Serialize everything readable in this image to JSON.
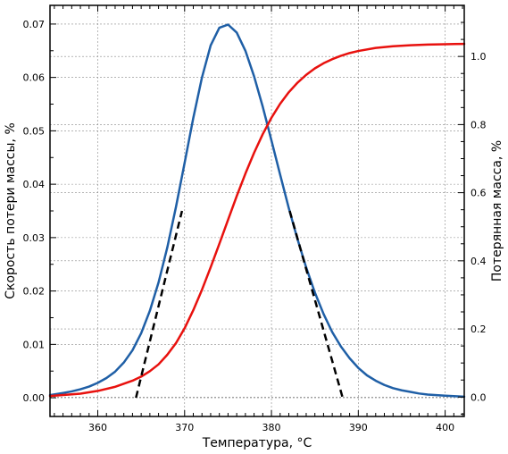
{
  "chart_data": {
    "type": "line",
    "xlabel": "Температура, °C",
    "ylabel_left": "Скорость потери массы, %",
    "ylabel_right": "Потерянная масса, %",
    "xlim": [
      354.5,
      402.2
    ],
    "ylim_left": [
      -0.0035,
      0.0735
    ],
    "ylim_right": [
      -0.057,
      1.15
    ],
    "x_ticks": [
      360,
      370,
      380,
      390,
      400
    ],
    "x_tick_labels": [
      "360",
      "370",
      "380",
      "390",
      "400"
    ],
    "y_left_ticks": [
      0.0,
      0.01,
      0.02,
      0.03,
      0.04,
      0.05,
      0.06,
      0.07
    ],
    "y_left_tick_labels": [
      "0.00",
      "0.01",
      "0.02",
      "0.03",
      "0.04",
      "0.05",
      "0.06",
      "0.07"
    ],
    "y_right_ticks": [
      0.0,
      0.2,
      0.4,
      0.6,
      0.8,
      1.0
    ],
    "y_right_tick_labels": [
      "0.0",
      "0.2",
      "0.4",
      "0.6",
      "0.8",
      "1.0"
    ],
    "grid": true,
    "series": [
      {
        "axis": "left",
        "color": "#1f5fa6",
        "style": "solid",
        "x": [
          354.5,
          356,
          357,
          358,
          359,
          360,
          361,
          362,
          363,
          364,
          365,
          366,
          367,
          368,
          369,
          370,
          371,
          372,
          373,
          374,
          375,
          376,
          377,
          378,
          379,
          380,
          381,
          382,
          383,
          384,
          385,
          386,
          387,
          388,
          389,
          390,
          391,
          392,
          393,
          394,
          395,
          396,
          397,
          398,
          399,
          400,
          401,
          402.2
        ],
        "y": [
          0.0005,
          0.0009,
          0.0012,
          0.0016,
          0.0021,
          0.0028,
          0.0037,
          0.0049,
          0.0066,
          0.0089,
          0.0121,
          0.0163,
          0.0216,
          0.0281,
          0.0357,
          0.044,
          0.0524,
          0.06,
          0.066,
          0.0693,
          0.0699,
          0.0684,
          0.065,
          0.0602,
          0.0545,
          0.0482,
          0.0418,
          0.0355,
          0.0297,
          0.0244,
          0.0197,
          0.0157,
          0.0123,
          0.0096,
          0.0074,
          0.0056,
          0.0042,
          0.0032,
          0.0024,
          0.0018,
          0.0014,
          0.0011,
          0.0008,
          0.0006,
          0.0005,
          0.0004,
          0.0003,
          0.0002
        ]
      },
      {
        "axis": "right",
        "color": "#e8110e",
        "style": "solid",
        "x": [
          354.5,
          356,
          358,
          360,
          362,
          364,
          365,
          366,
          367,
          368,
          369,
          370,
          371,
          372,
          373,
          374,
          375,
          376,
          377,
          378,
          379,
          380,
          381,
          382,
          383,
          384,
          385,
          386,
          387,
          388,
          389,
          390,
          392,
          394,
          396,
          398,
          400,
          402.2
        ],
        "y": [
          0.003,
          0.006,
          0.01,
          0.018,
          0.03,
          0.048,
          0.06,
          0.076,
          0.096,
          0.124,
          0.158,
          0.202,
          0.255,
          0.315,
          0.381,
          0.45,
          0.52,
          0.59,
          0.656,
          0.717,
          0.772,
          0.82,
          0.861,
          0.895,
          0.923,
          0.946,
          0.965,
          0.98,
          0.992,
          1.002,
          1.01,
          1.016,
          1.025,
          1.03,
          1.033,
          1.035,
          1.036,
          1.037
        ]
      },
      {
        "axis": "left",
        "color": "#000000",
        "style": "dashed",
        "x": [
          364.4,
          369.7
        ],
        "y": [
          0.0,
          0.035
        ]
      },
      {
        "axis": "left",
        "color": "#000000",
        "style": "dashed",
        "x": [
          382.1,
          388.2
        ],
        "y": [
          0.035,
          0.0
        ]
      }
    ]
  }
}
